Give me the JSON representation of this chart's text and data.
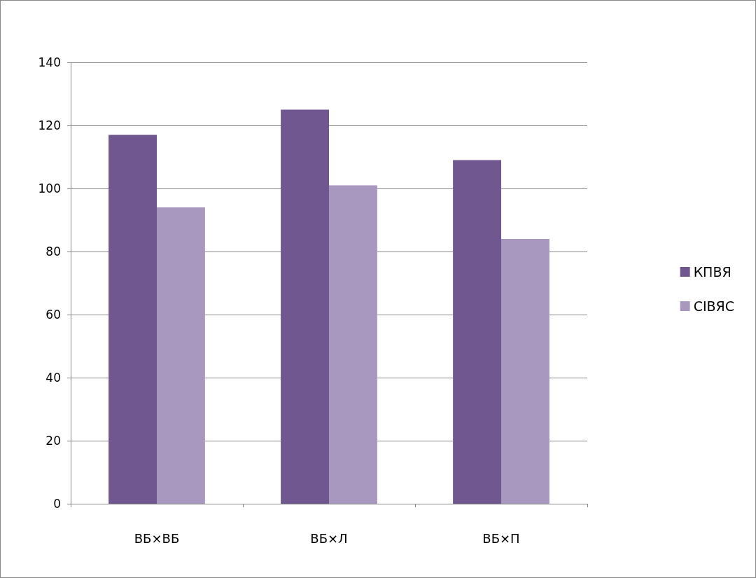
{
  "chart_data": {
    "type": "bar",
    "categories": [
      "ВБ×ВБ",
      "ВБ×Л",
      "ВБ×П"
    ],
    "series": [
      {
        "name": "КПВЯ",
        "color": "#71578f",
        "values": [
          117,
          125,
          109
        ]
      },
      {
        "name": "СІВЯС",
        "color": "#a898c0",
        "values": [
          94,
          101,
          84
        ]
      }
    ],
    "ylim": [
      0,
      140
    ],
    "yticks": [
      0,
      20,
      40,
      60,
      80,
      100,
      120,
      140
    ],
    "grid": "y",
    "legend": "right"
  }
}
